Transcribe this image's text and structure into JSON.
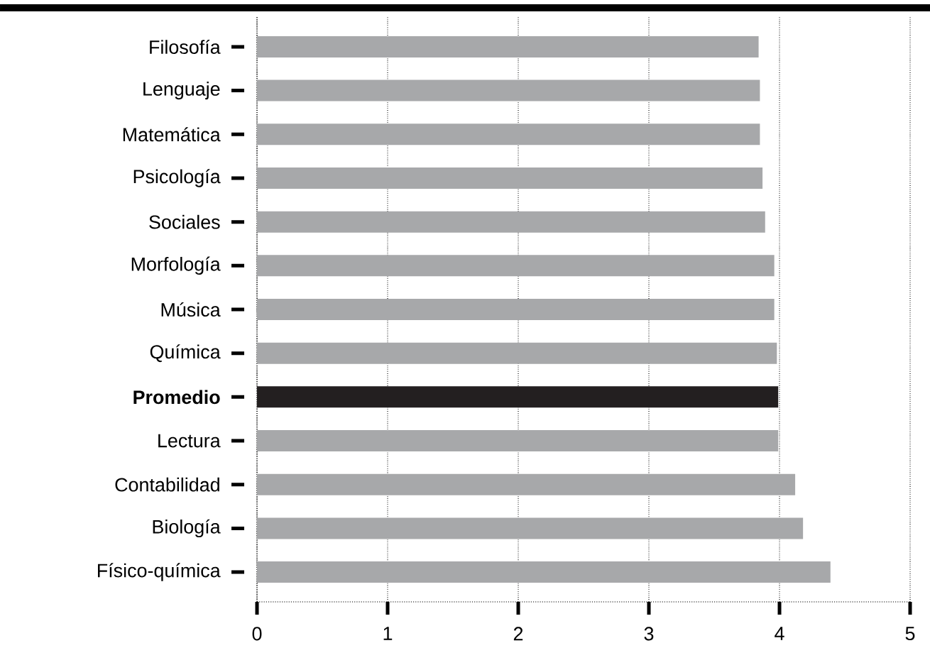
{
  "chart_data": {
    "type": "bar",
    "orientation": "horizontal",
    "categories": [
      "Filosofía",
      "Lenguaje",
      "Matemática",
      "Psicología",
      "Sociales",
      "Morfología",
      "Música",
      "Química",
      "**Promedio**",
      "Lectura",
      "Contabilidad",
      "Biología",
      "Físico-química"
    ],
    "values": [
      3.84,
      3.85,
      3.85,
      3.87,
      3.89,
      3.96,
      3.96,
      3.98,
      3.99,
      3.99,
      4.12,
      4.18,
      4.39
    ],
    "colors": [
      "#a7a8aa",
      "#a7a8aa",
      "#a7a8aa",
      "#a7a8aa",
      "#a7a8aa",
      "#a7a8aa",
      "#a7a8aa",
      "#a7a8aa",
      "#231f20",
      "#a7a8aa",
      "#a7a8aa",
      "#a7a8aa",
      "#a7a8aa"
    ],
    "xlim": [
      0,
      5
    ],
    "xticks": [
      0,
      1,
      2,
      3,
      4,
      5
    ],
    "grid": "x"
  }
}
